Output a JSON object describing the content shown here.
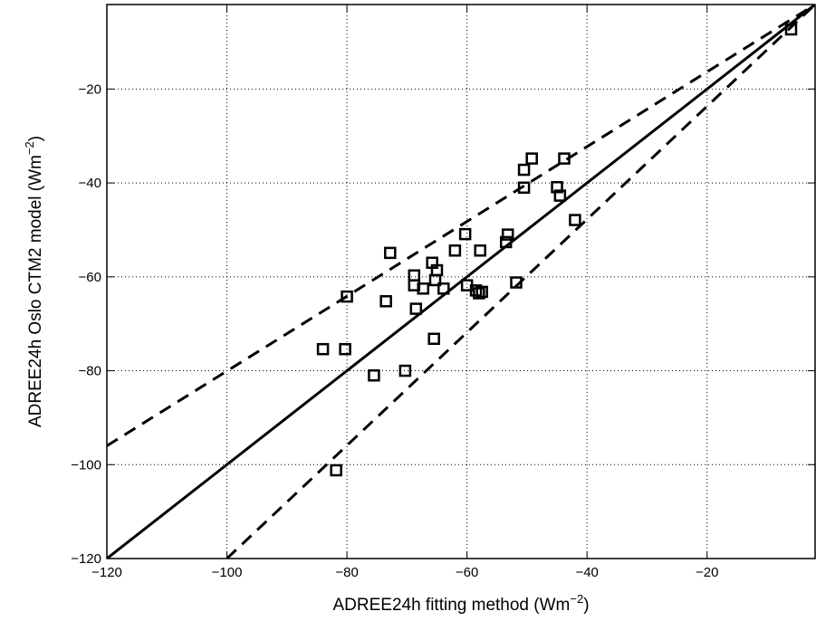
{
  "chart_data": {
    "type": "scatter",
    "xlabel": "ADREE24h fitting method (Wm",
    "xlabel_sup": "−2",
    "xlabel_end": ")",
    "ylabel": "ADREE24h Oslo CTM2 model (Wm",
    "ylabel_sup": "−2",
    "ylabel_end": ")",
    "xlim": [
      -120,
      -2
    ],
    "ylim": [
      -120,
      -2
    ],
    "x_ticks": [
      -120,
      -100,
      -80,
      -60,
      -40,
      -20
    ],
    "x_tick_labels": [
      "−120",
      "−100",
      "−80",
      "−60",
      "−40",
      "−20"
    ],
    "y_ticks": [
      -120,
      -100,
      -80,
      -60,
      -40,
      -20
    ],
    "y_tick_labels": [
      "−120",
      "−100",
      "−80",
      "−60",
      "−40",
      "−20"
    ],
    "grid": true,
    "points": [
      {
        "x": -81.8,
        "y": -101.2
      },
      {
        "x": -84.0,
        "y": -75.4
      },
      {
        "x": -80.3,
        "y": -75.4
      },
      {
        "x": -80.0,
        "y": -64.2
      },
      {
        "x": -75.5,
        "y": -81.0
      },
      {
        "x": -73.5,
        "y": -65.2
      },
      {
        "x": -72.8,
        "y": -54.9
      },
      {
        "x": -70.3,
        "y": -80.0
      },
      {
        "x": -68.8,
        "y": -61.8
      },
      {
        "x": -68.8,
        "y": -59.7
      },
      {
        "x": -68.5,
        "y": -66.8
      },
      {
        "x": -67.3,
        "y": -62.5
      },
      {
        "x": -65.8,
        "y": -57.0
      },
      {
        "x": -65.5,
        "y": -73.2
      },
      {
        "x": -65.3,
        "y": -60.7
      },
      {
        "x": -65.0,
        "y": -58.6
      },
      {
        "x": -63.9,
        "y": -62.5
      },
      {
        "x": -62.0,
        "y": -54.4
      },
      {
        "x": -60.3,
        "y": -50.9
      },
      {
        "x": -60.0,
        "y": -61.8
      },
      {
        "x": -58.5,
        "y": -62.9
      },
      {
        "x": -58.0,
        "y": -63.5
      },
      {
        "x": -57.8,
        "y": -54.4
      },
      {
        "x": -57.5,
        "y": -63.2
      },
      {
        "x": -53.5,
        "y": -52.6
      },
      {
        "x": -53.2,
        "y": -51.0
      },
      {
        "x": -51.8,
        "y": -61.2
      },
      {
        "x": -50.5,
        "y": -37.2
      },
      {
        "x": -50.5,
        "y": -41.0
      },
      {
        "x": -49.2,
        "y": -34.8
      },
      {
        "x": -45.0,
        "y": -40.9
      },
      {
        "x": -44.5,
        "y": -42.7
      },
      {
        "x": -43.8,
        "y": -34.8
      },
      {
        "x": -42.0,
        "y": -47.9
      },
      {
        "x": -6.0,
        "y": -7.3
      }
    ],
    "lines": [
      {
        "style": "solid",
        "x": [
          -120,
          -2
        ],
        "y": [
          -120,
          -2
        ]
      },
      {
        "style": "dashed",
        "x": [
          -120,
          -2
        ],
        "y": [
          -96,
          -2
        ]
      },
      {
        "style": "dashed",
        "x": [
          -100,
          -2
        ],
        "y": [
          -120,
          -2
        ]
      }
    ]
  }
}
